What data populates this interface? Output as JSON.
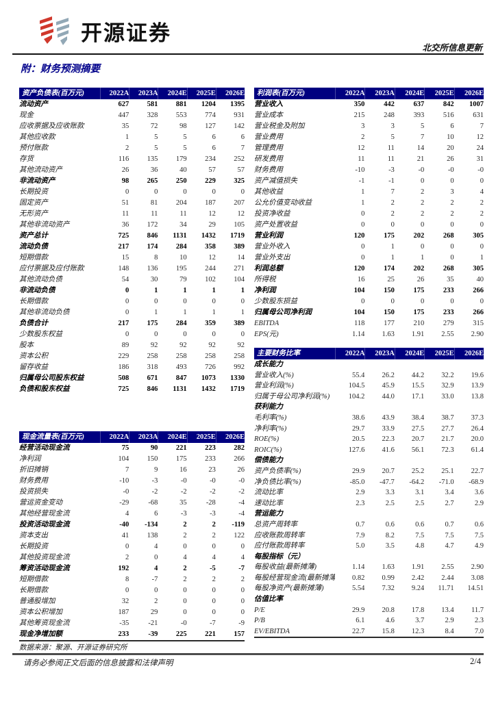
{
  "page": {
    "brand": "开源证券",
    "report_tag": "北交所信息更新",
    "section_title": "附：财务预测摘要",
    "source_note": "数据来源：聚源、开源证券研究所",
    "footer_disclaimer": "请务必参阅正文后面的信息披露和法律声明",
    "page_number": "2/4",
    "colors": {
      "accent_navy": "#000080",
      "title_navy": "#00008B",
      "logo_red": "#D0382C",
      "logo_blue_gray": "#92A8B6"
    }
  },
  "tables": {
    "balance_sheet": {
      "title": "资产负债表(百万元)",
      "years": [
        "2022A",
        "2023A",
        "2024E",
        "2025E",
        "2026E"
      ],
      "rows": [
        {
          "label": "流动资产",
          "bold": true,
          "values": [
            "627",
            "581",
            "881",
            "1204",
            "1395"
          ]
        },
        {
          "label": "现金",
          "values": [
            "447",
            "328",
            "553",
            "774",
            "931"
          ]
        },
        {
          "label": "应收票据及应收账款",
          "values": [
            "35",
            "72",
            "98",
            "127",
            "142"
          ]
        },
        {
          "label": "其他应收款",
          "values": [
            "1",
            "5",
            "5",
            "6",
            "6"
          ]
        },
        {
          "label": "预付账款",
          "values": [
            "2",
            "5",
            "5",
            "6",
            "7"
          ]
        },
        {
          "label": "存货",
          "values": [
            "116",
            "135",
            "179",
            "234",
            "252"
          ]
        },
        {
          "label": "其他流动资产",
          "values": [
            "26",
            "36",
            "40",
            "57",
            "57"
          ]
        },
        {
          "label": "非流动资产",
          "bold": true,
          "values": [
            "98",
            "265",
            "250",
            "229",
            "325"
          ]
        },
        {
          "label": "长期投资",
          "values": [
            "0",
            "0",
            "0",
            "0",
            "0"
          ]
        },
        {
          "label": "固定资产",
          "values": [
            "51",
            "81",
            "204",
            "187",
            "207"
          ]
        },
        {
          "label": "无形资产",
          "values": [
            "11",
            "11",
            "11",
            "12",
            "12"
          ]
        },
        {
          "label": "其他非流动资产",
          "values": [
            "36",
            "172",
            "34",
            "29",
            "105"
          ]
        },
        {
          "label": "资产总计",
          "bold": true,
          "values": [
            "725",
            "846",
            "1131",
            "1432",
            "1719"
          ]
        },
        {
          "label": "流动负债",
          "bold": true,
          "values": [
            "217",
            "174",
            "284",
            "358",
            "389"
          ]
        },
        {
          "label": "短期借款",
          "values": [
            "15",
            "8",
            "10",
            "12",
            "14"
          ]
        },
        {
          "label": "应付票据及应付账款",
          "values": [
            "148",
            "136",
            "195",
            "244",
            "271"
          ]
        },
        {
          "label": "其他流动负债",
          "values": [
            "54",
            "30",
            "79",
            "102",
            "104"
          ]
        },
        {
          "label": "非流动负债",
          "bold": true,
          "values": [
            "0",
            "1",
            "1",
            "1",
            "1"
          ]
        },
        {
          "label": "长期借款",
          "values": [
            "0",
            "0",
            "0",
            "0",
            "0"
          ]
        },
        {
          "label": "其他非流动负债",
          "values": [
            "0",
            "1",
            "1",
            "1",
            "1"
          ]
        },
        {
          "label": "负债合计",
          "bold": true,
          "values": [
            "217",
            "175",
            "284",
            "359",
            "389"
          ]
        },
        {
          "label": "少数股东权益",
          "values": [
            "0",
            "0",
            "0",
            "0",
            "0"
          ]
        },
        {
          "label": "股本",
          "values": [
            "89",
            "92",
            "92",
            "92",
            "92"
          ]
        },
        {
          "label": "资本公积",
          "values": [
            "229",
            "258",
            "258",
            "258",
            "258"
          ]
        },
        {
          "label": "留存收益",
          "values": [
            "186",
            "318",
            "493",
            "726",
            "992"
          ]
        },
        {
          "label": "归属母公司股东权益",
          "bold": true,
          "values": [
            "508",
            "671",
            "847",
            "1073",
            "1330"
          ]
        },
        {
          "label": "负债和股东权益",
          "bold": true,
          "values": [
            "725",
            "846",
            "1131",
            "1432",
            "1719"
          ]
        }
      ]
    },
    "income": {
      "title": "利润表(百万元)",
      "years": [
        "2022A",
        "2023A",
        "2024E",
        "2025E",
        "2026E"
      ],
      "rows": [
        {
          "label": "营业收入",
          "bold": true,
          "values": [
            "350",
            "442",
            "637",
            "842",
            "1007"
          ]
        },
        {
          "label": "营业成本",
          "values": [
            "215",
            "248",
            "393",
            "516",
            "631"
          ]
        },
        {
          "label": "营业税金及附加",
          "values": [
            "3",
            "3",
            "5",
            "6",
            "7"
          ]
        },
        {
          "label": "营业费用",
          "values": [
            "2",
            "5",
            "7",
            "10",
            "12"
          ]
        },
        {
          "label": "管理费用",
          "values": [
            "12",
            "11",
            "14",
            "20",
            "24"
          ]
        },
        {
          "label": "研发费用",
          "values": [
            "11",
            "11",
            "21",
            "26",
            "31"
          ]
        },
        {
          "label": "财务费用",
          "values": [
            "-10",
            "-3",
            "-0",
            "-0",
            "-0"
          ]
        },
        {
          "label": "资产减值损失",
          "values": [
            "-1",
            "-1",
            "0",
            "0",
            "0"
          ]
        },
        {
          "label": "其他收益",
          "values": [
            "1",
            "7",
            "2",
            "3",
            "4"
          ]
        },
        {
          "label": "公允价值变动收益",
          "values": [
            "1",
            "2",
            "2",
            "2",
            "2"
          ]
        },
        {
          "label": "投资净收益",
          "values": [
            "0",
            "2",
            "2",
            "2",
            "2"
          ]
        },
        {
          "label": "资产处置收益",
          "values": [
            "0",
            "0",
            "0",
            "0",
            "0"
          ]
        },
        {
          "label": "营业利润",
          "bold": true,
          "values": [
            "120",
            "175",
            "202",
            "268",
            "305"
          ]
        },
        {
          "label": "营业外收入",
          "values": [
            "0",
            "1",
            "0",
            "0",
            "0"
          ]
        },
        {
          "label": "营业外支出",
          "values": [
            "0",
            "1",
            "1",
            "0",
            "1"
          ]
        },
        {
          "label": "利润总额",
          "bold": true,
          "values": [
            "120",
            "174",
            "202",
            "268",
            "305"
          ]
        },
        {
          "label": "所得税",
          "values": [
            "16",
            "25",
            "26",
            "35",
            "40"
          ]
        },
        {
          "label": "净利润",
          "bold": true,
          "values": [
            "104",
            "150",
            "175",
            "233",
            "266"
          ]
        },
        {
          "label": "少数股东损益",
          "values": [
            "0",
            "0",
            "0",
            "0",
            "0"
          ]
        },
        {
          "label": "归属母公司净利润",
          "bold": true,
          "values": [
            "104",
            "150",
            "175",
            "233",
            "266"
          ]
        },
        {
          "label": "EBITDA",
          "values": [
            "118",
            "177",
            "210",
            "279",
            "315"
          ]
        },
        {
          "label": "EPS(元)",
          "values": [
            "1.14",
            "1.63",
            "1.91",
            "2.55",
            "2.90"
          ]
        }
      ]
    },
    "ratios": {
      "title": "主要财务比率",
      "years": [
        "2022A",
        "2023A",
        "2024E",
        "2025E",
        "2026E"
      ],
      "rows": [
        {
          "label": "成长能力",
          "section": true,
          "values": []
        },
        {
          "label": "营业收入(%)",
          "values": [
            "55.4",
            "26.2",
            "44.2",
            "32.2",
            "19.6"
          ]
        },
        {
          "label": "营业利润(%)",
          "values": [
            "104.5",
            "45.9",
            "15.5",
            "32.9",
            "13.9"
          ]
        },
        {
          "label": "归属于母公司净利润(%)",
          "values": [
            "104.2",
            "44.0",
            "17.1",
            "33.0",
            "13.8"
          ]
        },
        {
          "label": "获利能力",
          "section": true,
          "values": []
        },
        {
          "label": "毛利率(%)",
          "values": [
            "38.6",
            "43.9",
            "38.4",
            "38.7",
            "37.3"
          ]
        },
        {
          "label": "净利率(%)",
          "values": [
            "29.7",
            "33.9",
            "27.5",
            "27.7",
            "26.4"
          ]
        },
        {
          "label": "ROE(%)",
          "values": [
            "20.5",
            "22.3",
            "20.7",
            "21.7",
            "20.0"
          ]
        },
        {
          "label": "ROIC(%)",
          "values": [
            "127.6",
            "41.6",
            "56.1",
            "72.3",
            "61.4"
          ]
        },
        {
          "label": "偿债能力",
          "section": true,
          "values": []
        },
        {
          "label": "资产负债率(%)",
          "values": [
            "29.9",
            "20.7",
            "25.2",
            "25.1",
            "22.7"
          ]
        },
        {
          "label": "净负债比率(%)",
          "values": [
            "-85.0",
            "-47.7",
            "-64.2",
            "-71.0",
            "-68.9"
          ]
        },
        {
          "label": "流动比率",
          "values": [
            "2.9",
            "3.3",
            "3.1",
            "3.4",
            "3.6"
          ]
        },
        {
          "label": "速动比率",
          "values": [
            "2.3",
            "2.5",
            "2.5",
            "2.7",
            "2.9"
          ]
        },
        {
          "label": "营运能力",
          "section": true,
          "values": []
        },
        {
          "label": "总资产周转率",
          "values": [
            "0.7",
            "0.6",
            "0.6",
            "0.7",
            "0.6"
          ]
        },
        {
          "label": "应收账款周转率",
          "values": [
            "7.9",
            "8.2",
            "7.5",
            "7.5",
            "7.5"
          ]
        },
        {
          "label": "应付账款周转率",
          "values": [
            "5.0",
            "3.5",
            "4.8",
            "4.7",
            "4.9"
          ]
        },
        {
          "label": "每股指标（元）",
          "section": true,
          "values": []
        },
        {
          "label": "每股收益(最新摊薄)",
          "values": [
            "1.14",
            "1.63",
            "1.91",
            "2.55",
            "2.90"
          ]
        },
        {
          "label": "每股经营现金流(最新摊薄)",
          "values": [
            "0.82",
            "0.99",
            "2.42",
            "2.44",
            "3.08"
          ]
        },
        {
          "label": "每股净资产(最新摊薄)",
          "values": [
            "5.54",
            "7.32",
            "9.24",
            "11.71",
            "14.51"
          ]
        },
        {
          "label": "估值比率",
          "section": true,
          "values": []
        },
        {
          "label": "P/E",
          "values": [
            "29.9",
            "20.8",
            "17.8",
            "13.4",
            "11.7"
          ]
        },
        {
          "label": "P/B",
          "values": [
            "6.1",
            "4.6",
            "3.7",
            "2.9",
            "2.3"
          ]
        },
        {
          "label": "EV/EBITDA",
          "values": [
            "22.7",
            "15.8",
            "12.3",
            "8.4",
            "7.0"
          ]
        }
      ]
    },
    "cashflow": {
      "title": "现金流量表(百万元)",
      "years": [
        "2022A",
        "2023A",
        "2024E",
        "2025E",
        "2026E"
      ],
      "rows": [
        {
          "label": "经营活动现金流",
          "bold": true,
          "values": [
            "75",
            "90",
            "221",
            "223",
            "282"
          ]
        },
        {
          "label": "净利润",
          "values": [
            "104",
            "150",
            "175",
            "233",
            "266"
          ]
        },
        {
          "label": "折旧摊销",
          "values": [
            "7",
            "9",
            "16",
            "23",
            "26"
          ]
        },
        {
          "label": "财务费用",
          "values": [
            "-10",
            "-3",
            "-0",
            "-0",
            "-0"
          ]
        },
        {
          "label": "投资损失",
          "values": [
            "-0",
            "-2",
            "-2",
            "-2",
            "-2"
          ]
        },
        {
          "label": "营运资金变动",
          "values": [
            "-29",
            "-68",
            "35",
            "-28",
            "-4"
          ]
        },
        {
          "label": "其他经营现金流",
          "values": [
            "4",
            "6",
            "-3",
            "-3",
            "-4"
          ]
        },
        {
          "label": "投资活动现金流",
          "bold": true,
          "values": [
            "-40",
            "-134",
            "2",
            "2",
            "-119"
          ]
        },
        {
          "label": "资本支出",
          "values": [
            "41",
            "138",
            "2",
            "2",
            "122"
          ]
        },
        {
          "label": "长期投资",
          "values": [
            "0",
            "4",
            "0",
            "0",
            "0"
          ]
        },
        {
          "label": "其他投资现金流",
          "values": [
            "2",
            "0",
            "4",
            "4",
            "4"
          ]
        },
        {
          "label": "筹资活动现金流",
          "bold": true,
          "values": [
            "192",
            "4",
            "2",
            "-5",
            "-7"
          ]
        },
        {
          "label": "短期借款",
          "values": [
            "8",
            "-7",
            "2",
            "2",
            "2"
          ]
        },
        {
          "label": "长期借款",
          "values": [
            "0",
            "0",
            "0",
            "0",
            "0"
          ]
        },
        {
          "label": "普通股增加",
          "values": [
            "32",
            "2",
            "0",
            "0",
            "0"
          ]
        },
        {
          "label": "资本公积增加",
          "values": [
            "187",
            "29",
            "0",
            "0",
            "0"
          ]
        },
        {
          "label": "其他筹资现金流",
          "values": [
            "-35",
            "-21",
            "-0",
            "-7",
            "-9"
          ]
        },
        {
          "label": "现金净增加额",
          "bold": true,
          "values": [
            "233",
            "-39",
            "225",
            "221",
            "157"
          ]
        }
      ]
    }
  }
}
